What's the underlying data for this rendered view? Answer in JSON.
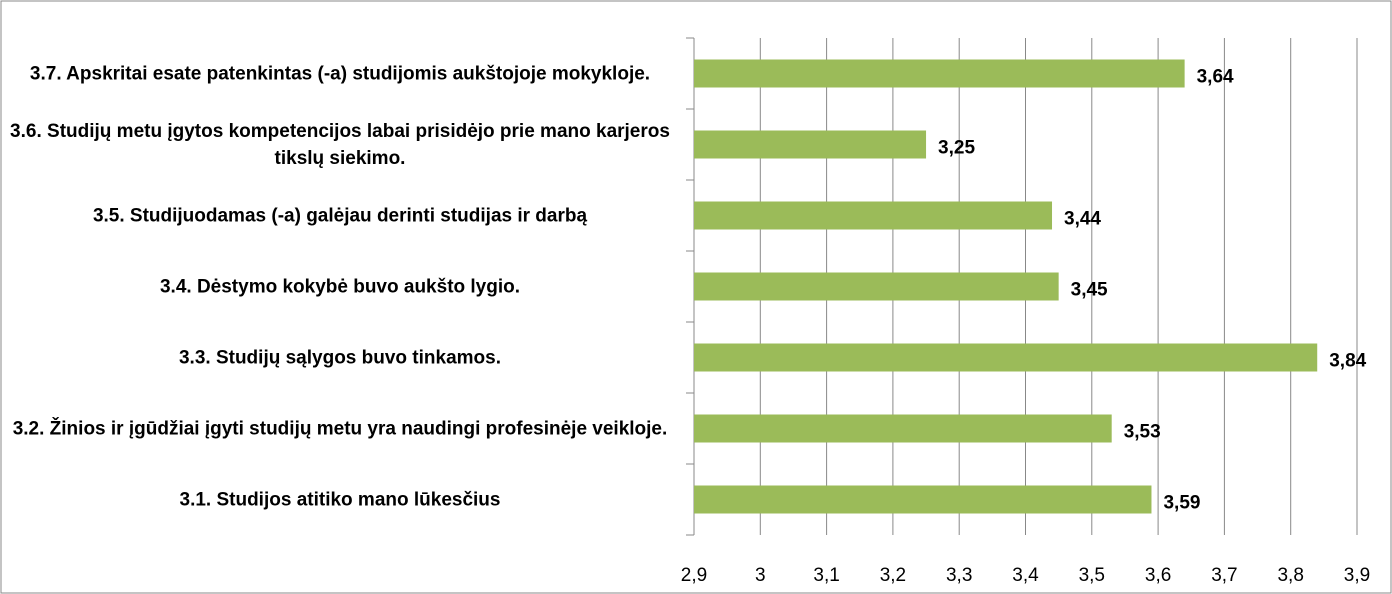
{
  "chart_data": {
    "type": "bar",
    "orientation": "horizontal",
    "categories": [
      "3.7. Apskritai esate patenkintas (-a) studijomis aukštojoje mokykloje.",
      "3.6. Studijų metu įgytos kompetencijos labai prisidėjo prie mano karjeros tikslų siekimo.",
      "3.5. Studijuodamas (-a) galėjau derinti studijas ir darbą",
      "3.4. Dėstymo kokybė buvo aukšto lygio.",
      "3.3. Studijų sąlygos buvo tinkamos.",
      "3.2. Žinios ir įgūdžiai įgyti studijų metu yra naudingi profesinėje veikloje.",
      "3.1. Studijos atitiko mano lūkesčius"
    ],
    "values": [
      3.64,
      3.25,
      3.44,
      3.45,
      3.84,
      3.53,
      3.59
    ],
    "value_labels": [
      "3,64",
      "3,25",
      "3,44",
      "3,45",
      "3,84",
      "3,53",
      "3,59"
    ],
    "color": "#9bbb59",
    "xlim": [
      2.9,
      3.9
    ],
    "xticks": [
      {
        "value": 2.9,
        "label": "2,9"
      },
      3,
      {
        "value": 3.1,
        "label": "3,1"
      },
      {
        "value": 3.2,
        "label": "3,2"
      },
      {
        "value": 3.3,
        "label": "3,3"
      },
      {
        "value": 3.4,
        "label": "3,4"
      },
      {
        "value": 3.5,
        "label": "3,5"
      },
      {
        "value": 3.6,
        "label": "3,6"
      },
      {
        "value": 3.7,
        "label": "3,7"
      },
      {
        "value": 3.8,
        "label": "3,8"
      },
      {
        "value": 3.9,
        "label": "3,9"
      }
    ],
    "grid": true
  }
}
